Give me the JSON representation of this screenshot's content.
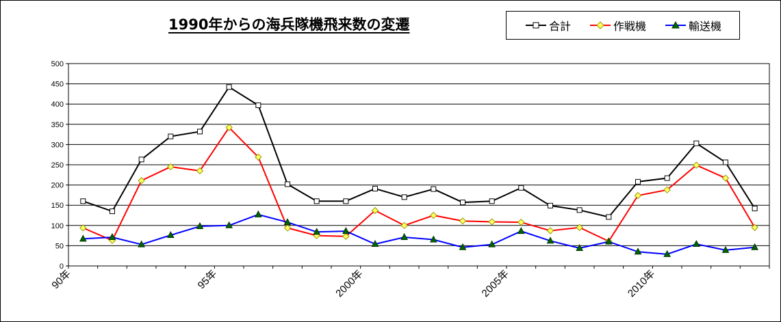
{
  "chart_data": {
    "type": "line",
    "title": "1990年からの海兵隊機飛来数の変遷",
    "xlabel": "",
    "ylabel": "",
    "ylim": [
      0,
      500
    ],
    "yticks": [
      0,
      50,
      100,
      150,
      200,
      250,
      300,
      350,
      400,
      450,
      500
    ],
    "x": [
      1990,
      1991,
      1992,
      1993,
      1994,
      1995,
      1996,
      1997,
      1998,
      1999,
      2000,
      2001,
      2002,
      2003,
      2004,
      2005,
      2006,
      2007,
      2008,
      2009,
      2010,
      2011,
      2012,
      2013
    ],
    "xtick_labels": [
      {
        "x": 1990,
        "label": "90年"
      },
      {
        "x": 1995,
        "label": "95年"
      },
      {
        "x": 2000,
        "label": "2000年"
      },
      {
        "x": 2005,
        "label": "2005年"
      },
      {
        "x": 2010,
        "label": "2010年"
      }
    ],
    "grid": true,
    "legend_position": "top-right",
    "series": [
      {
        "name": "合計",
        "color": "#000000",
        "marker": "square",
        "values": [
          160,
          135,
          263,
          320,
          332,
          442,
          397,
          202,
          160,
          160,
          191,
          170,
          190,
          157,
          160,
          193,
          149,
          138,
          121,
          208,
          217,
          303,
          256,
          142
        ]
      },
      {
        "name": "作戦機",
        "color": "#ff0000",
        "marker": "diamond",
        "values": [
          94,
          63,
          211,
          245,
          235,
          342,
          269,
          94,
          75,
          73,
          137,
          100,
          125,
          111,
          109,
          108,
          87,
          95,
          61,
          174,
          188,
          249,
          217,
          95
        ]
      },
      {
        "name": "輸送機",
        "color": "#0000ff",
        "marker": "triangle",
        "values": [
          67,
          71,
          53,
          76,
          98,
          100,
          127,
          108,
          84,
          86,
          54,
          71,
          65,
          46,
          53,
          86,
          62,
          44,
          60,
          35,
          29,
          54,
          39,
          46
        ]
      }
    ]
  }
}
